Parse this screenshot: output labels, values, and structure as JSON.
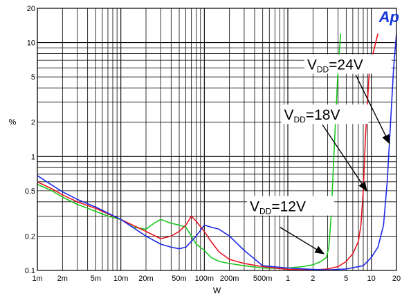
{
  "chart_data": {
    "type": "line",
    "xlabel": "W",
    "ylabel": "%",
    "xscale": "log",
    "yscale": "log",
    "xlim": [
      0.001,
      20
    ],
    "ylim": [
      0.1,
      20
    ],
    "grid": true,
    "x_ticks": [
      {
        "v": 0.001,
        "t": "1m"
      },
      {
        "v": 0.002,
        "t": "2m"
      },
      {
        "v": 0.005,
        "t": "5m"
      },
      {
        "v": 0.01,
        "t": "10m"
      },
      {
        "v": 0.02,
        "t": "20m"
      },
      {
        "v": 0.05,
        "t": "50m"
      },
      {
        "v": 0.1,
        "t": "100m"
      },
      {
        "v": 0.2,
        "t": "200m"
      },
      {
        "v": 0.5,
        "t": "500m"
      },
      {
        "v": 1,
        "t": "1"
      },
      {
        "v": 2,
        "t": "2"
      },
      {
        "v": 5,
        "t": "5"
      },
      {
        "v": 10,
        "t": "10"
      },
      {
        "v": 20,
        "t": "20"
      }
    ],
    "y_ticks": [
      {
        "v": 0.1,
        "t": "0.1"
      },
      {
        "v": 0.2,
        "t": "0.2"
      },
      {
        "v": 0.5,
        "t": "0.5"
      },
      {
        "v": 1,
        "t": "1"
      },
      {
        "v": 2,
        "t": "2"
      },
      {
        "v": 5,
        "t": "5"
      },
      {
        "v": 10,
        "t": "10"
      },
      {
        "v": 20,
        "t": "20"
      }
    ],
    "series": [
      {
        "color": "#19c81e",
        "x": [
          0.001,
          0.0015,
          0.002,
          0.003,
          0.005,
          0.007,
          0.01,
          0.014,
          0.02,
          0.025,
          0.03,
          0.04,
          0.05,
          0.06,
          0.07,
          0.08,
          0.1,
          0.12,
          0.15,
          0.2,
          0.3,
          0.5,
          0.8,
          1,
          1.5,
          2,
          2.5,
          2.9,
          3.1,
          3.3,
          3.6,
          4,
          4.3
        ],
        "y": [
          0.57,
          0.5,
          0.44,
          0.38,
          0.33,
          0.3,
          0.28,
          0.24,
          0.23,
          0.26,
          0.28,
          0.26,
          0.25,
          0.24,
          0.2,
          0.17,
          0.15,
          0.13,
          0.12,
          0.115,
          0.11,
          0.105,
          0.104,
          0.105,
          0.108,
          0.112,
          0.12,
          0.13,
          0.16,
          0.3,
          1.2,
          6,
          12
        ]
      },
      {
        "color": "#e8141e",
        "x": [
          0.001,
          0.0015,
          0.002,
          0.003,
          0.005,
          0.01,
          0.02,
          0.03,
          0.04,
          0.05,
          0.06,
          0.07,
          0.08,
          0.1,
          0.12,
          0.15,
          0.2,
          0.3,
          0.5,
          1,
          2,
          3,
          4,
          5,
          6,
          7,
          7.5,
          8,
          8.5,
          9.5,
          12
        ],
        "y": [
          0.6,
          0.52,
          0.46,
          0.4,
          0.35,
          0.28,
          0.22,
          0.19,
          0.2,
          0.22,
          0.25,
          0.3,
          0.27,
          0.22,
          0.18,
          0.145,
          0.125,
          0.115,
          0.108,
          0.102,
          0.101,
          0.103,
          0.108,
          0.12,
          0.14,
          0.18,
          0.25,
          0.5,
          1.5,
          6,
          12
        ]
      },
      {
        "color": "#1e28e8",
        "x": [
          0.001,
          0.0015,
          0.002,
          0.003,
          0.005,
          0.01,
          0.02,
          0.03,
          0.04,
          0.05,
          0.06,
          0.08,
          0.1,
          0.12,
          0.15,
          0.2,
          0.3,
          0.5,
          1,
          2,
          3,
          5,
          8,
          10,
          12,
          14,
          15.5,
          17,
          18.5,
          20
        ],
        "y": [
          0.68,
          0.56,
          0.49,
          0.42,
          0.36,
          0.28,
          0.2,
          0.17,
          0.16,
          0.155,
          0.16,
          0.2,
          0.25,
          0.24,
          0.23,
          0.2,
          0.15,
          0.11,
          0.105,
          0.102,
          0.101,
          0.103,
          0.11,
          0.13,
          0.16,
          0.25,
          0.6,
          2,
          6,
          12
        ]
      }
    ],
    "annotations": [
      {
        "main": "V",
        "sub": "DD",
        "rest": "=24V",
        "x": 1.7,
        "y": 5.8,
        "ax": 6.5,
        "ay": 5.2,
        "hx": 16.5,
        "hy": 1.3
      },
      {
        "main": "V",
        "sub": "DD",
        "rest": "=18V",
        "x": 0.9,
        "y": 2.1,
        "ax": 2.6,
        "ay": 1.9,
        "hx": 8.8,
        "hy": 0.5
      },
      {
        "main": "V",
        "sub": "DD",
        "rest": "=12V",
        "x": 0.35,
        "y": 0.33,
        "ax": 0.8,
        "ay": 0.24,
        "hx": 2.7,
        "hy": 0.14
      }
    ],
    "logo": "Ap"
  }
}
